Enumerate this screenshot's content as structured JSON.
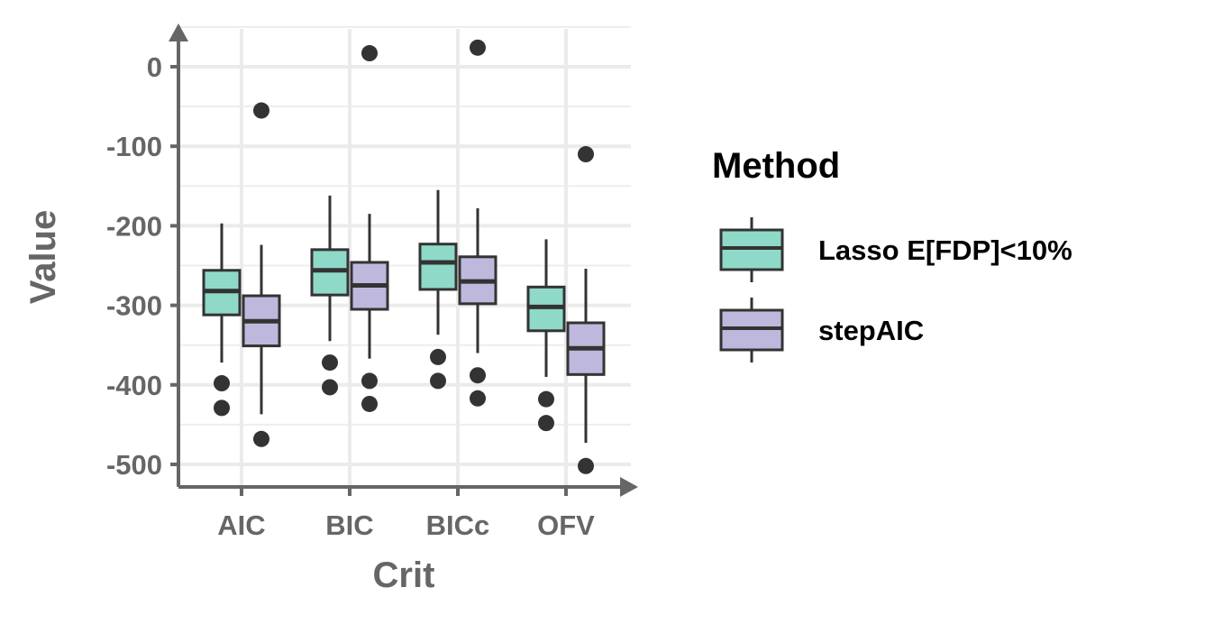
{
  "chart_data": {
    "type": "boxplot",
    "xlabel": "Crit",
    "ylabel": "Value",
    "categories": [
      "AIC",
      "BIC",
      "BICc",
      "OFV"
    ],
    "ylim": [
      -530,
      45
    ],
    "yticks": [
      0,
      -100,
      -200,
      -300,
      -400,
      -500
    ],
    "ytick_labels": [
      "0",
      "-100",
      "-200",
      "-300",
      "-400",
      "-500"
    ],
    "grid": true,
    "legend": {
      "title": "Method",
      "position": "right",
      "entries": [
        "Lasso E[FDP]<10%",
        "stepAIC"
      ]
    },
    "series": [
      {
        "name": "Lasso E[FDP]<10%",
        "color": "#8fd9c9",
        "boxes": [
          {
            "whisker_high": -197,
            "q3": -256,
            "median": -282,
            "q1": -312,
            "whisker_low": -372,
            "outliers": [
              -398,
              -429
            ]
          },
          {
            "whisker_high": -162,
            "q3": -230,
            "median": -256,
            "q1": -287,
            "whisker_low": -345,
            "outliers": [
              -372,
              -403
            ]
          },
          {
            "whisker_high": -155,
            "q3": -223,
            "median": -246,
            "q1": -280,
            "whisker_low": -337,
            "outliers": [
              -365,
              -395
            ]
          },
          {
            "whisker_high": -217,
            "q3": -277,
            "median": -302,
            "q1": -332,
            "whisker_low": -390,
            "outliers": [
              -418,
              -448
            ]
          }
        ]
      },
      {
        "name": "stepAIC",
        "color": "#beb8dc",
        "boxes": [
          {
            "whisker_high": -224,
            "q3": -288,
            "median": -320,
            "q1": -351,
            "whisker_low": -437,
            "outliers": [
              -55,
              -468
            ]
          },
          {
            "whisker_high": -185,
            "q3": -246,
            "median": -275,
            "q1": -305,
            "whisker_low": -367,
            "outliers": [
              17,
              -395,
              -424
            ]
          },
          {
            "whisker_high": -178,
            "q3": -239,
            "median": -270,
            "q1": -298,
            "whisker_low": -360,
            "outliers": [
              24,
              -388,
              -417
            ]
          },
          {
            "whisker_high": -254,
            "q3": -322,
            "median": -354,
            "q1": -387,
            "whisker_low": -473,
            "outliers": [
              -110,
              -502
            ]
          }
        ]
      }
    ]
  }
}
